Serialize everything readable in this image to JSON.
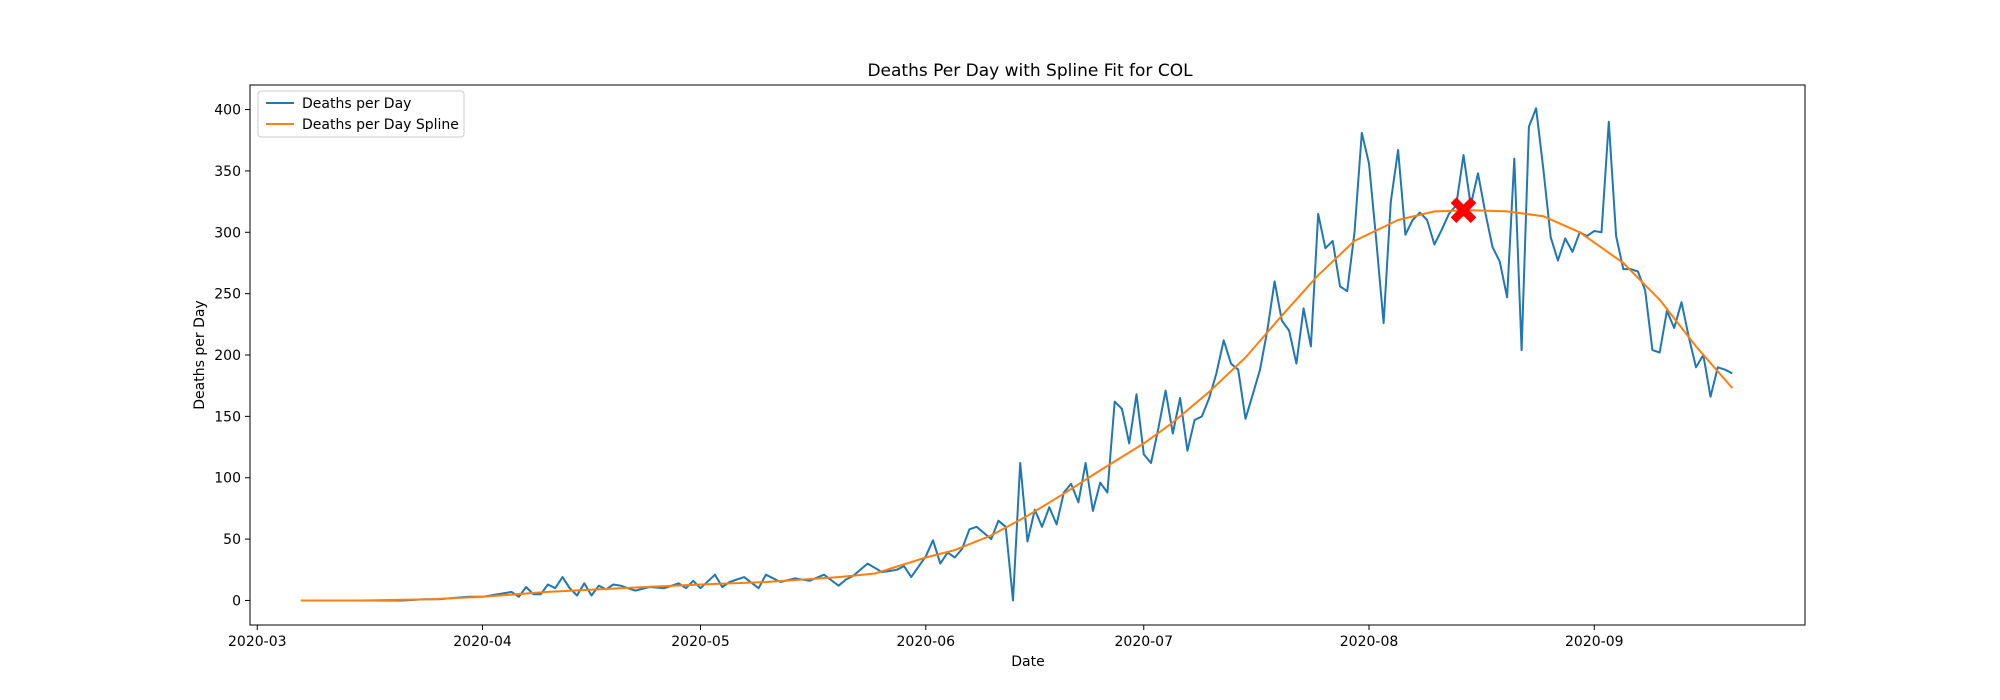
{
  "chart_data": {
    "type": "line",
    "title": "Deaths Per Day with Spline Fit for COL",
    "xlabel": "Date",
    "ylabel": "Deaths per Day",
    "xlim": [
      "2020-02-29",
      "2020-09-30"
    ],
    "ylim": [
      -20,
      420
    ],
    "x_ticks": [
      "2020-03",
      "2020-04",
      "2020-05",
      "2020-06",
      "2020-07",
      "2020-08",
      "2020-09"
    ],
    "y_ticks": [
      0,
      50,
      100,
      150,
      200,
      250,
      300,
      350,
      400
    ],
    "grid": false,
    "legend_position": "top-left",
    "series": [
      {
        "name": "Deaths per Day",
        "color": "#1f77b4",
        "points": [
          [
            "2020-03-07",
            0
          ],
          [
            "2020-03-14",
            0
          ],
          [
            "2020-03-21",
            0
          ],
          [
            "2020-03-24",
            1
          ],
          [
            "2020-03-26",
            1
          ],
          [
            "2020-03-28",
            2
          ],
          [
            "2020-03-30",
            3
          ],
          [
            "2020-04-01",
            3
          ],
          [
            "2020-04-03",
            5
          ],
          [
            "2020-04-05",
            7
          ],
          [
            "2020-04-06",
            3
          ],
          [
            "2020-04-07",
            11
          ],
          [
            "2020-04-08",
            5
          ],
          [
            "2020-04-09",
            5
          ],
          [
            "2020-04-10",
            13
          ],
          [
            "2020-04-11",
            10
          ],
          [
            "2020-04-12",
            19
          ],
          [
            "2020-04-13",
            10
          ],
          [
            "2020-04-14",
            4
          ],
          [
            "2020-04-15",
            14
          ],
          [
            "2020-04-16",
            4
          ],
          [
            "2020-04-17",
            12
          ],
          [
            "2020-04-18",
            9
          ],
          [
            "2020-04-19",
            13
          ],
          [
            "2020-04-20",
            12
          ],
          [
            "2020-04-22",
            8
          ],
          [
            "2020-04-24",
            11
          ],
          [
            "2020-04-26",
            10
          ],
          [
            "2020-04-28",
            14
          ],
          [
            "2020-04-29",
            10
          ],
          [
            "2020-04-30",
            16
          ],
          [
            "2020-05-01",
            10
          ],
          [
            "2020-05-03",
            21
          ],
          [
            "2020-05-04",
            11
          ],
          [
            "2020-05-05",
            15
          ],
          [
            "2020-05-07",
            19
          ],
          [
            "2020-05-09",
            10
          ],
          [
            "2020-05-10",
            21
          ],
          [
            "2020-05-12",
            15
          ],
          [
            "2020-05-14",
            18
          ],
          [
            "2020-05-16",
            16
          ],
          [
            "2020-05-18",
            21
          ],
          [
            "2020-05-20",
            12
          ],
          [
            "2020-05-21",
            17
          ],
          [
            "2020-05-22",
            20
          ],
          [
            "2020-05-24",
            30
          ],
          [
            "2020-05-26",
            23
          ],
          [
            "2020-05-28",
            25
          ],
          [
            "2020-05-29",
            28
          ],
          [
            "2020-05-30",
            19
          ],
          [
            "2020-06-01",
            36
          ],
          [
            "2020-06-02",
            49
          ],
          [
            "2020-06-03",
            30
          ],
          [
            "2020-06-04",
            39
          ],
          [
            "2020-06-05",
            35
          ],
          [
            "2020-06-06",
            42
          ],
          [
            "2020-06-07",
            58
          ],
          [
            "2020-06-08",
            60
          ],
          [
            "2020-06-10",
            50
          ],
          [
            "2020-06-11",
            65
          ],
          [
            "2020-06-12",
            60
          ],
          [
            "2020-06-13",
            0
          ],
          [
            "2020-06-14",
            112
          ],
          [
            "2020-06-15",
            48
          ],
          [
            "2020-06-16",
            74
          ],
          [
            "2020-06-17",
            60
          ],
          [
            "2020-06-18",
            76
          ],
          [
            "2020-06-19",
            62
          ],
          [
            "2020-06-20",
            88
          ],
          [
            "2020-06-21",
            95
          ],
          [
            "2020-06-22",
            80
          ],
          [
            "2020-06-23",
            112
          ],
          [
            "2020-06-24",
            73
          ],
          [
            "2020-06-25",
            96
          ],
          [
            "2020-06-26",
            88
          ],
          [
            "2020-06-27",
            162
          ],
          [
            "2020-06-28",
            156
          ],
          [
            "2020-06-29",
            128
          ],
          [
            "2020-06-30",
            168
          ],
          [
            "2020-07-01",
            119
          ],
          [
            "2020-07-02",
            112
          ],
          [
            "2020-07-03",
            140
          ],
          [
            "2020-07-04",
            171
          ],
          [
            "2020-07-05",
            136
          ],
          [
            "2020-07-06",
            165
          ],
          [
            "2020-07-07",
            122
          ],
          [
            "2020-07-08",
            147
          ],
          [
            "2020-07-09",
            150
          ],
          [
            "2020-07-10",
            165
          ],
          [
            "2020-07-11",
            185
          ],
          [
            "2020-07-12",
            212
          ],
          [
            "2020-07-13",
            193
          ],
          [
            "2020-07-14",
            188
          ],
          [
            "2020-07-15",
            148
          ],
          [
            "2020-07-16",
            168
          ],
          [
            "2020-07-17",
            188
          ],
          [
            "2020-07-18",
            220
          ],
          [
            "2020-07-19",
            260
          ],
          [
            "2020-07-20",
            228
          ],
          [
            "2020-07-21",
            220
          ],
          [
            "2020-07-22",
            193
          ],
          [
            "2020-07-23",
            238
          ],
          [
            "2020-07-24",
            207
          ],
          [
            "2020-07-25",
            315
          ],
          [
            "2020-07-26",
            287
          ],
          [
            "2020-07-27",
            293
          ],
          [
            "2020-07-28",
            256
          ],
          [
            "2020-07-29",
            252
          ],
          [
            "2020-07-30",
            300
          ],
          [
            "2020-07-31",
            381
          ],
          [
            "2020-08-01",
            356
          ],
          [
            "2020-08-02",
            293
          ],
          [
            "2020-08-03",
            226
          ],
          [
            "2020-08-04",
            325
          ],
          [
            "2020-08-05",
            367
          ],
          [
            "2020-08-06",
            298
          ],
          [
            "2020-08-07",
            310
          ],
          [
            "2020-08-08",
            316
          ],
          [
            "2020-08-09",
            310
          ],
          [
            "2020-08-10",
            290
          ],
          [
            "2020-08-11",
            302
          ],
          [
            "2020-08-12",
            315
          ],
          [
            "2020-08-13",
            322
          ],
          [
            "2020-08-14",
            363
          ],
          [
            "2020-08-15",
            322
          ],
          [
            "2020-08-16",
            348
          ],
          [
            "2020-08-17",
            316
          ],
          [
            "2020-08-18",
            288
          ],
          [
            "2020-08-19",
            276
          ],
          [
            "2020-08-20",
            247
          ],
          [
            "2020-08-21",
            360
          ],
          [
            "2020-08-22",
            204
          ],
          [
            "2020-08-23",
            386
          ],
          [
            "2020-08-24",
            401
          ],
          [
            "2020-08-25",
            351
          ],
          [
            "2020-08-26",
            296
          ],
          [
            "2020-08-27",
            277
          ],
          [
            "2020-08-28",
            295
          ],
          [
            "2020-08-29",
            284
          ],
          [
            "2020-08-30",
            300
          ],
          [
            "2020-08-31",
            297
          ],
          [
            "2020-09-01",
            301
          ],
          [
            "2020-09-02",
            300
          ],
          [
            "2020-09-03",
            390
          ],
          [
            "2020-09-04",
            297
          ],
          [
            "2020-09-05",
            270
          ],
          [
            "2020-09-06",
            270
          ],
          [
            "2020-09-07",
            268
          ],
          [
            "2020-09-08",
            253
          ],
          [
            "2020-09-09",
            204
          ],
          [
            "2020-09-10",
            202
          ],
          [
            "2020-09-11",
            236
          ],
          [
            "2020-09-12",
            222
          ],
          [
            "2020-09-13",
            243
          ],
          [
            "2020-09-14",
            215
          ],
          [
            "2020-09-15",
            190
          ],
          [
            "2020-09-16",
            200
          ],
          [
            "2020-09-17",
            166
          ],
          [
            "2020-09-18",
            190
          ],
          [
            "2020-09-19",
            188
          ],
          [
            "2020-09-20",
            185
          ]
        ]
      },
      {
        "name": "Deaths per Day Spline",
        "color": "#ff7f0e",
        "points": [
          [
            "2020-03-07",
            0
          ],
          [
            "2020-03-15",
            0
          ],
          [
            "2020-03-25",
            1
          ],
          [
            "2020-04-01",
            3
          ],
          [
            "2020-04-10",
            7
          ],
          [
            "2020-04-20",
            10
          ],
          [
            "2020-05-01",
            13
          ],
          [
            "2020-05-10",
            15
          ],
          [
            "2020-05-20",
            19
          ],
          [
            "2020-05-25",
            22
          ],
          [
            "2020-06-01",
            35
          ],
          [
            "2020-06-05",
            41
          ],
          [
            "2020-06-10",
            53
          ],
          [
            "2020-06-15",
            69
          ],
          [
            "2020-06-20",
            87
          ],
          [
            "2020-06-25",
            106
          ],
          [
            "2020-07-01",
            128
          ],
          [
            "2020-07-05",
            145
          ],
          [
            "2020-07-10",
            170
          ],
          [
            "2020-07-15",
            198
          ],
          [
            "2020-07-20",
            232
          ],
          [
            "2020-07-25",
            265
          ],
          [
            "2020-07-30",
            293
          ],
          [
            "2020-08-05",
            310
          ],
          [
            "2020-08-10",
            317
          ],
          [
            "2020-08-15",
            318
          ],
          [
            "2020-08-20",
            317
          ],
          [
            "2020-08-25",
            313
          ],
          [
            "2020-08-30",
            300
          ],
          [
            "2020-09-05",
            275
          ],
          [
            "2020-09-10",
            245
          ],
          [
            "2020-09-15",
            207
          ],
          [
            "2020-09-20",
            173
          ]
        ]
      }
    ],
    "marker": {
      "x": "2020-08-14",
      "y": 318,
      "symbol": "X",
      "color": "#ff0000"
    }
  }
}
